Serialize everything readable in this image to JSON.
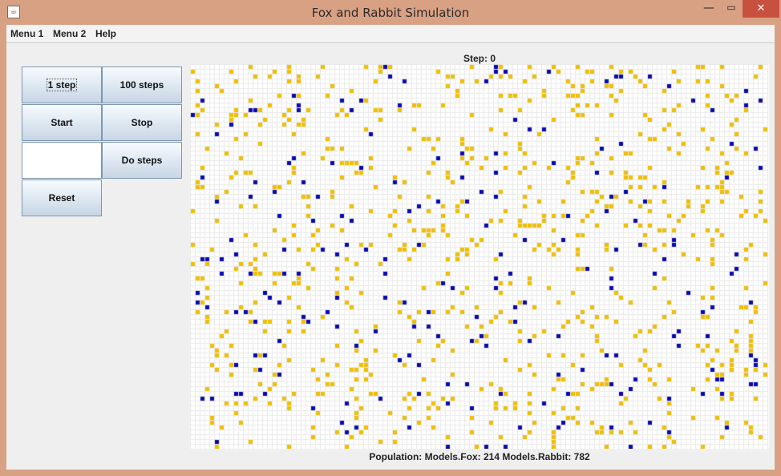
{
  "window": {
    "title": "Fox and Rabbit Simulation",
    "icon": "java-cup-icon",
    "controls": {
      "minimize": "—",
      "maximize": "▭",
      "close": "✕"
    }
  },
  "menubar": [
    "Menu 1",
    "Menu 2",
    "Help"
  ],
  "controls": {
    "one_step": "1 step",
    "hundred_steps": "100 steps",
    "start": "Start",
    "stop": "Stop",
    "steps_input_value": "",
    "do_steps": "Do steps",
    "reset": "Reset"
  },
  "simulation": {
    "step_text": "Step: 0",
    "population_text": "Population: Models.Fox: 214 Models.Rabbit: 782",
    "fox_count": 214,
    "rabbit_count": 782,
    "colors": {
      "fox": "#0a0ab4",
      "rabbit": "#f2bf00",
      "empty": "#ffffff",
      "grid": "#e9e9e9"
    }
  }
}
